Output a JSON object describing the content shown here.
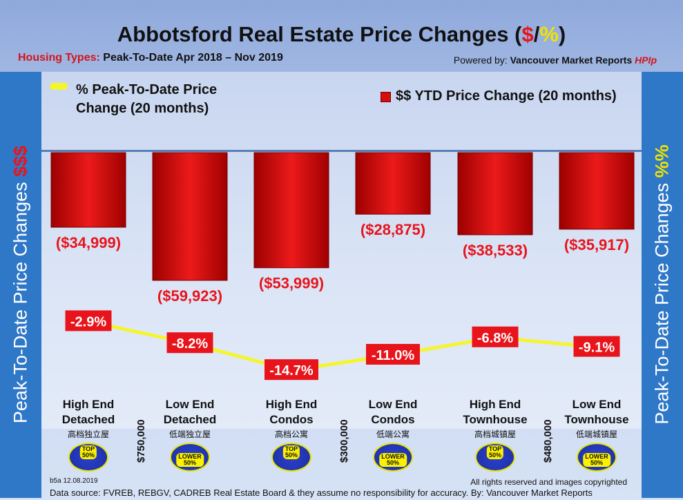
{
  "title": {
    "prefix": "Abbotsford Real Estate Price Changes (",
    "dollar": "$",
    "slash": "/",
    "percent": "%",
    "suffix": ")"
  },
  "subtitle": {
    "label": "Housing Types:",
    "text": "Peak-To-Date Apr 2018 – Nov 2019"
  },
  "powered_by": {
    "label": "Powered by:",
    "name": "Vancouver Market Reports",
    "hpi": "HPIp"
  },
  "sidebar_left": {
    "text": "Peak-To-Date Price Changes",
    "symbol": "$$$"
  },
  "sidebar_right": {
    "text": "Peak-To-Date  Price  Changes",
    "symbol": "%%"
  },
  "legend": {
    "line": "% Peak-To-Date Price Change (20 months)",
    "bar": "$$ YTD Price Change (20 months)"
  },
  "categories": [
    {
      "name1": "High End",
      "name2": "Detached",
      "cn": "高档独立屋",
      "tier": "TOP",
      "tier2": "50%"
    },
    {
      "name1": "Low End",
      "name2": "Detached",
      "cn": "低端独立屋",
      "tier": "LOWER",
      "tier2": "50%"
    },
    {
      "name1": "High End",
      "name2": "Condos",
      "cn": "高档公寓",
      "tier": "TOP",
      "tier2": "50%"
    },
    {
      "name1": "Low End",
      "name2": "Condos",
      "cn": "低端公寓",
      "tier": "LOWER",
      "tier2": "50%"
    },
    {
      "name1": "High End",
      "name2": "Townhouse",
      "cn": "高档城镇屋",
      "tier": "TOP",
      "tier2": "50%"
    },
    {
      "name1": "Low End",
      "name2": "Townhouse",
      "cn": "低端城镇屋",
      "tier": "LOWER",
      "tier2": "50%"
    }
  ],
  "thresholds": [
    "$750,000",
    "$300,000",
    "$480,000"
  ],
  "chart_data": {
    "type": "bar",
    "categories": [
      "High End Detached",
      "Low End Detached",
      "High End Condos",
      "Low End Condos",
      "High End Townhouse",
      "Low End Townhouse"
    ],
    "series": [
      {
        "name": "$$ YTD Price Change (20 months)",
        "values": [
          -34999,
          -59923,
          -53999,
          -28875,
          -38533,
          -35917
        ],
        "labels": [
          "($34,999)",
          "($59,923)",
          "($53,999)",
          "($28,875)",
          "($38,533)",
          "($35,917)"
        ]
      },
      {
        "name": "% Peak-To-Date Price Change (20 months)",
        "values": [
          -2.9,
          -8.2,
          -14.7,
          -11.0,
          -6.8,
          -9.1
        ],
        "labels": [
          "-2.9%",
          "-8.2%",
          "-14.7%",
          "-11.0%",
          "-6.8%",
          "-9.1%"
        ]
      }
    ]
  },
  "footer": {
    "code": "b5a 12.08.2019",
    "rights": "All rights reserved and  images copyrighted",
    "source": "Data source: FVREB, REBGV, CADREB Real Estate Board & they assume no responsibility for accuracy. By: Vancouver Market Reports"
  },
  "colors": {
    "bar": "#e8141b",
    "line": "#f5f52e",
    "sidebar": "#2f78c8"
  }
}
